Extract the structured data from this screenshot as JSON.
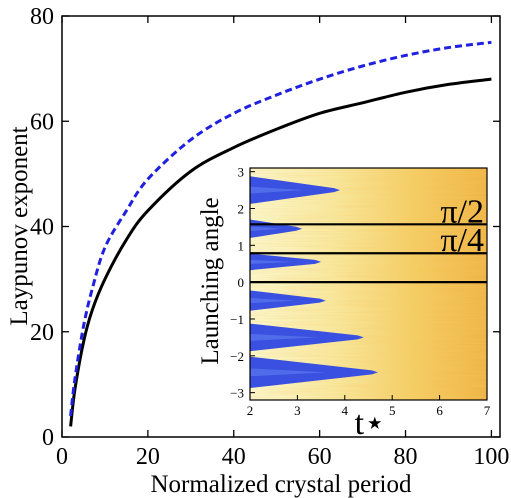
{
  "chart_data": [
    {
      "type": "line",
      "xlabel": "Normalized crystal period",
      "ylabel": "Laypunov exponent",
      "xlim": [
        0,
        102
      ],
      "ylim": [
        0,
        80
      ],
      "xticks": [
        0,
        20,
        40,
        60,
        80,
        100
      ],
      "yticks": [
        0,
        20,
        40,
        60,
        80
      ],
      "grid": false,
      "series": [
        {
          "style": "solid",
          "color": "#000000",
          "x": [
            2,
            3,
            5,
            7,
            10,
            15,
            20,
            30,
            40,
            50,
            60,
            70,
            80,
            90,
            100
          ],
          "y": [
            2,
            9,
            18,
            24,
            30,
            37.5,
            43,
            50.5,
            55,
            58.5,
            61.5,
            63.5,
            65.5,
            67,
            68
          ]
        },
        {
          "style": "dashed",
          "color": "#2020e0",
          "x": [
            2,
            3,
            5,
            7,
            10,
            15,
            20,
            30,
            40,
            50,
            60,
            70,
            80,
            90,
            100
          ],
          "y": [
            4,
            11,
            21,
            28,
            36,
            43,
            49,
            56.5,
            61.5,
            65,
            68,
            70.5,
            72.5,
            74,
            75
          ]
        }
      ]
    },
    {
      "type": "heatmap",
      "xlabel": "t⋆",
      "ylabel": "Launching angle",
      "xlim": [
        2,
        7
      ],
      "ylim": [
        -3.2,
        3.1
      ],
      "xticks": [
        2,
        3,
        4,
        5,
        6,
        7
      ],
      "yticks": [
        -3,
        -2,
        -1,
        0,
        1,
        2,
        3
      ],
      "colors": {
        "low": "#3a50e0",
        "mid": "#f8f6c8",
        "high": "#f0b040"
      },
      "blue_wedges": [
        {
          "y": 2.5,
          "tip": 3.9,
          "width": 0.75
        },
        {
          "y": 1.45,
          "tip": 3.1,
          "width": 0.5
        },
        {
          "y": 0.55,
          "tip": 3.5,
          "width": 0.45
        },
        {
          "y": -0.5,
          "tip": 3.6,
          "width": 0.55
        },
        {
          "y": -1.5,
          "tip": 4.4,
          "width": 0.75
        },
        {
          "y": -2.45,
          "tip": 4.7,
          "width": 0.85
        }
      ],
      "lines": [
        {
          "y": 1.5708,
          "label": "π/2"
        },
        {
          "y": 0.7854,
          "label": "π/4"
        },
        {
          "y": 0,
          "label": ""
        }
      ]
    }
  ]
}
